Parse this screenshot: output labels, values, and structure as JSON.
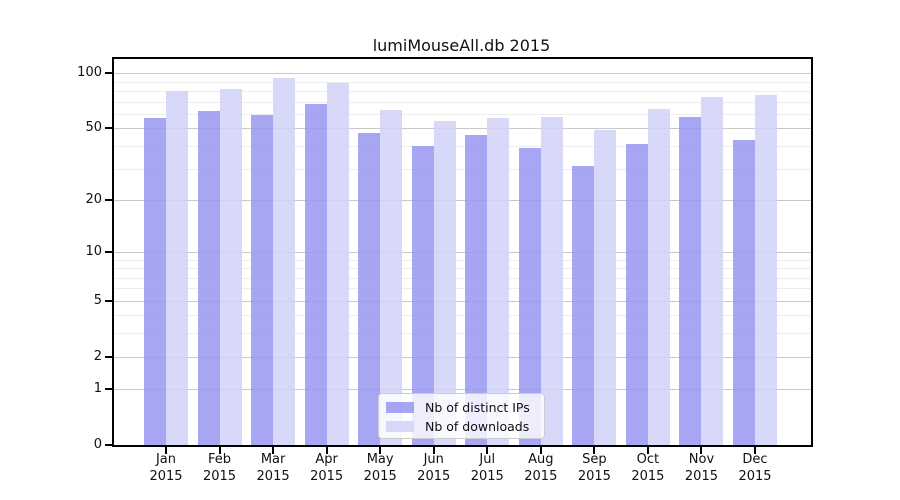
{
  "chart_data": {
    "type": "bar",
    "title": "lumiMouseAll.db 2015",
    "categories": [
      "Jan",
      "Feb",
      "Mar",
      "Apr",
      "May",
      "Jun",
      "Jul",
      "Aug",
      "Sep",
      "Oct",
      "Nov",
      "Dec"
    ],
    "year_label": "2015",
    "series": [
      {
        "name": "Nb of distinct IPs",
        "color": "#9797f1",
        "values": [
          57,
          62,
          59,
          68,
          47,
          40,
          46,
          39,
          31,
          41,
          58,
          43
        ]
      },
      {
        "name": "Nb of downloads",
        "color": "#d1d1f7",
        "values": [
          80,
          82,
          95,
          89,
          63,
          55,
          57,
          58,
          49,
          64,
          74,
          76
        ]
      }
    ],
    "yscale": "log1p",
    "yticks": [
      0,
      1,
      2,
      5,
      10,
      20,
      50,
      100
    ],
    "minor_yticks": [
      3,
      4,
      6,
      7,
      8,
      9,
      30,
      40,
      60,
      70,
      80,
      90
    ],
    "ylim": [
      0,
      120
    ],
    "grid": true,
    "legend_position": "bottom-center",
    "colors": {
      "major_grid": "#c9c9c9",
      "minor_grid": "#ededed",
      "spine": "#000000",
      "legend_border": "#cccccc"
    }
  }
}
